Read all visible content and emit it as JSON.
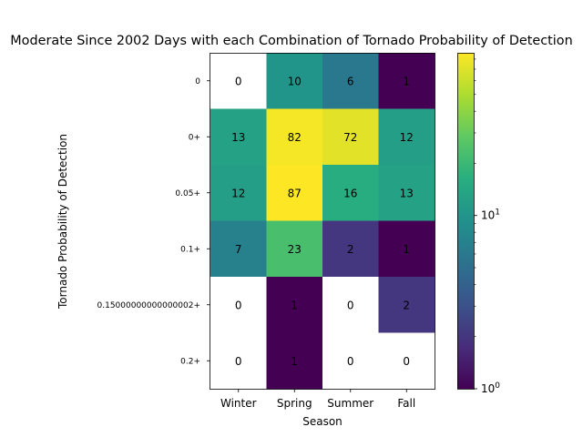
{
  "chart_data": {
    "type": "heatmap",
    "title": "Moderate Since 2002 Days with each Combination of Tornado Probability of Detection",
    "xlabel": "Season",
    "ylabel": "Tornado Probability of Detection",
    "x_categories": [
      "Winter",
      "Spring",
      "Summer",
      "Fall"
    ],
    "y_categories": [
      "0",
      "0+",
      "0.05+",
      "0.1+",
      "0.15000000000000002+",
      "0.2+"
    ],
    "values": [
      [
        0,
        10,
        6,
        1
      ],
      [
        13,
        82,
        72,
        12
      ],
      [
        12,
        87,
        16,
        13
      ],
      [
        7,
        23,
        2,
        1
      ],
      [
        0,
        1,
        0,
        2
      ],
      [
        0,
        1,
        0,
        0
      ]
    ],
    "colorbar": {
      "scale": "log",
      "colormap": "viridis",
      "min": 1,
      "max": 87,
      "tick_labels": [
        "10^0",
        "10^1"
      ],
      "tick_values": [
        1,
        10
      ]
    },
    "zero_cell_color": "#ffffff"
  }
}
